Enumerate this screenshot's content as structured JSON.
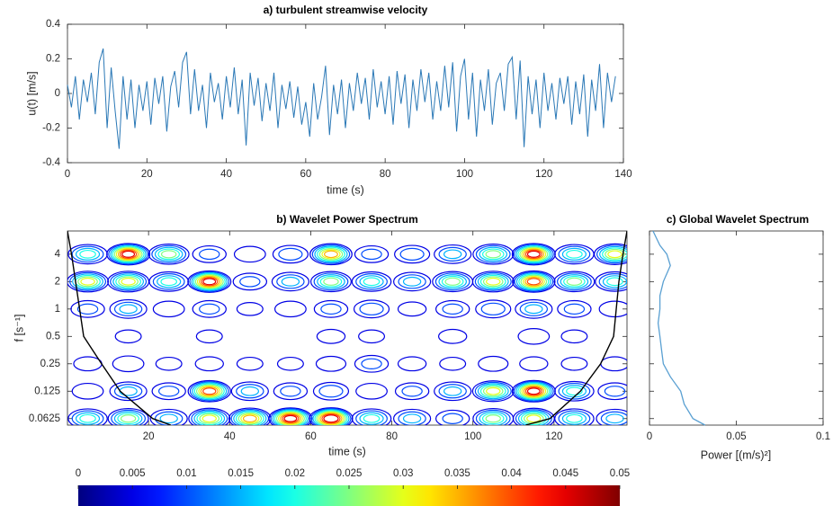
{
  "chart_data": [
    {
      "type": "line",
      "title": "a) turbulent streamwise velocity",
      "xlabel": "time (s)",
      "ylabel": "u(t) [m/s]",
      "color": "#2a78b6",
      "x": [
        0,
        1,
        2,
        3,
        4,
        5,
        6,
        7,
        8,
        9,
        10,
        11,
        12,
        13,
        14,
        15,
        16,
        17,
        18,
        19,
        20,
        21,
        22,
        23,
        24,
        25,
        26,
        27,
        28,
        29,
        30,
        31,
        32,
        33,
        34,
        35,
        36,
        37,
        38,
        39,
        40,
        41,
        42,
        43,
        44,
        45,
        46,
        47,
        48,
        49,
        50,
        51,
        52,
        53,
        54,
        55,
        56,
        57,
        58,
        59,
        60,
        61,
        62,
        63,
        64,
        65,
        66,
        67,
        68,
        69,
        70,
        71,
        72,
        73,
        74,
        75,
        76,
        77,
        78,
        79,
        80,
        81,
        82,
        83,
        84,
        85,
        86,
        87,
        88,
        89,
        90,
        91,
        92,
        93,
        94,
        95,
        96,
        97,
        98,
        99,
        100,
        101,
        102,
        103,
        104,
        105,
        106,
        107,
        108,
        109,
        110,
        111,
        112,
        113,
        114,
        115,
        116,
        117,
        118,
        119,
        120,
        121,
        122,
        123,
        124,
        125,
        126,
        127,
        128,
        129,
        130,
        131,
        132,
        133,
        134,
        135,
        136,
        137,
        138
      ],
      "values": [
        0.05,
        -0.08,
        0.1,
        -0.15,
        0.08,
        -0.05,
        0.12,
        -0.12,
        0.18,
        0.26,
        -0.2,
        0.15,
        -0.1,
        -0.32,
        0.1,
        -0.15,
        0.08,
        -0.2,
        0.05,
        -0.1,
        0.07,
        -0.18,
        0.09,
        -0.06,
        0.1,
        -0.22,
        0.04,
        0.13,
        -0.08,
        0.18,
        0.24,
        -0.12,
        0.14,
        -0.1,
        0.05,
        -0.2,
        0.12,
        -0.05,
        0.06,
        -0.15,
        0.1,
        -0.08,
        0.15,
        -0.12,
        0.08,
        -0.3,
        0.12,
        -0.07,
        0.09,
        -0.16,
        0.06,
        -0.1,
        0.12,
        -0.2,
        0.05,
        -0.09,
        0.07,
        -0.14,
        0.04,
        -0.18,
        -0.05,
        -0.25,
        0.06,
        -0.15,
        -0.02,
        0.16,
        -0.24,
        0.05,
        -0.12,
        0.08,
        -0.2,
        0.06,
        -0.1,
        0.12,
        -0.06,
        0.09,
        -0.15,
        0.14,
        -0.08,
        0.07,
        -0.12,
        0.1,
        -0.18,
        0.13,
        -0.06,
        0.11,
        -0.2,
        0.08,
        -0.1,
        0.14,
        -0.05,
        0.12,
        -0.15,
        0.07,
        -0.1,
        0.16,
        -0.08,
        0.18,
        -0.22,
        0.1,
        0.2,
        -0.15,
        0.12,
        -0.25,
        0.08,
        -0.1,
        0.14,
        -0.18,
        0.06,
        0.12,
        -0.1,
        0.17,
        0.21,
        -0.15,
        0.19,
        -0.31,
        0.1,
        -0.12,
        0.08,
        -0.2,
        0.12,
        -0.1,
        0.06,
        -0.15,
        0.09,
        -0.06,
        0.1,
        -0.18,
        0.07,
        -0.12,
        0.11,
        -0.25,
        0.08,
        -0.1,
        0.17,
        -0.2,
        0.12,
        -0.05,
        0.1
      ],
      "xlim": [
        0,
        140
      ],
      "xticks": [
        0,
        20,
        40,
        60,
        80,
        100,
        120,
        140
      ],
      "ylim": [
        -0.4,
        0.4
      ],
      "yticks": [
        -0.4,
        -0.2,
        0,
        0.2,
        0.4
      ]
    },
    {
      "type": "contour",
      "title": "b) Wavelet Power Spectrum",
      "xlabel": "time (s)",
      "ylabel": "f [s⁻¹]",
      "log_y": true,
      "x": [
        5,
        15,
        25,
        35,
        45,
        55,
        65,
        75,
        85,
        95,
        105,
        115,
        125,
        135
      ],
      "y": [
        4,
        2,
        1,
        0.5,
        0.25,
        0.125,
        0.0625
      ],
      "z": [
        [
          0.02,
          0.045,
          0.025,
          0.01,
          0.008,
          0.012,
          0.035,
          0.01,
          0.012,
          0.015,
          0.025,
          0.045,
          0.02,
          0.03
        ],
        [
          0.03,
          0.03,
          0.02,
          0.045,
          0.01,
          0.015,
          0.025,
          0.02,
          0.015,
          0.025,
          0.03,
          0.04,
          0.025,
          0.02
        ],
        [
          0.01,
          0.015,
          0.008,
          0.01,
          0.005,
          0.008,
          0.01,
          0.012,
          0.006,
          0.01,
          0.012,
          0.015,
          0.01,
          0.008
        ],
        [
          0.004,
          0.005,
          0.003,
          0.005,
          0.004,
          0.003,
          0.006,
          0.005,
          0.004,
          0.006,
          0.004,
          0.008,
          0.005,
          0.004
        ],
        [
          0.006,
          0.008,
          0.005,
          0.006,
          0.005,
          0.005,
          0.007,
          0.01,
          0.006,
          0.005,
          0.007,
          0.006,
          0.005,
          0.006
        ],
        [
          0.008,
          0.015,
          0.01,
          0.04,
          0.015,
          0.01,
          0.012,
          0.008,
          0.01,
          0.015,
          0.03,
          0.045,
          0.02,
          0.01
        ],
        [
          0.02,
          0.025,
          0.015,
          0.03,
          0.035,
          0.045,
          0.048,
          0.02,
          0.015,
          0.01,
          0.025,
          0.03,
          0.02,
          0.015
        ]
      ],
      "coi": {
        "color": "#000000",
        "x": [
          0,
          1,
          2,
          4,
          8.4,
          13,
          21,
          25.5,
          69,
          113,
          119,
          126.5,
          131.5,
          134.7,
          136,
          137,
          138
        ],
        "values": [
          7.2,
          4,
          2,
          0.5,
          0.25,
          0.125,
          0.0625,
          0.053,
          null,
          0.053,
          0.0625,
          0.125,
          0.25,
          0.5,
          2,
          4,
          7.2
        ]
      },
      "xlim": [
        0,
        138
      ],
      "xticks": [
        20,
        40,
        60,
        80,
        100,
        120
      ],
      "ylim": [
        0.053,
        7.2
      ],
      "yticks": [
        0.0625,
        0.125,
        0.25,
        0.5,
        1,
        2,
        4
      ],
      "colorbar": {
        "lim": [
          0,
          0.05
        ],
        "ticks": [
          0,
          0.005,
          0.01,
          0.015,
          0.02,
          0.025,
          0.03,
          0.035,
          0.04,
          0.045,
          0.05
        ]
      }
    },
    {
      "type": "line",
      "orientation": "horizontal",
      "title": "c) Global Wavelet Spectrum",
      "xlabel": "Power [(m/s)²]",
      "log_y": true,
      "color": "#5aa0d2",
      "y": [
        7.2,
        5,
        4,
        3,
        2,
        1.4,
        1,
        0.7,
        0.5,
        0.35,
        0.25,
        0.18,
        0.125,
        0.09,
        0.0625,
        0.053
      ],
      "values": [
        0.002,
        0.006,
        0.01,
        0.012,
        0.008,
        0.006,
        0.006,
        0.005,
        0.006,
        0.007,
        0.008,
        0.012,
        0.018,
        0.02,
        0.025,
        0.032
      ],
      "xlim": [
        0,
        0.1
      ],
      "xticks": [
        0,
        0.05,
        0.1
      ],
      "ylim": [
        0.053,
        7.2
      ],
      "yticks": [
        0.0625,
        0.125,
        0.25,
        0.5,
        1,
        2,
        4
      ]
    }
  ]
}
